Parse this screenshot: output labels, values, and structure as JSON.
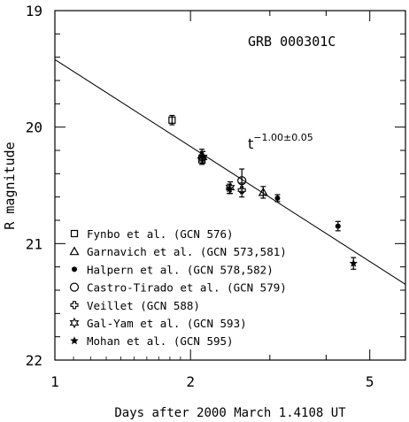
{
  "chart_data": {
    "type": "scatter",
    "title": "GRB 000301C",
    "xlabel": "Days after 2000 March 1.4108 UT",
    "ylabel": "R magnitude",
    "x_scale": "log",
    "xlim": [
      1,
      6
    ],
    "ylim": [
      22,
      19
    ],
    "x_ticks": [
      {
        "value": 1,
        "label": "1"
      },
      {
        "value": 2,
        "label": "2"
      },
      {
        "value": 5,
        "label": "5"
      }
    ],
    "y_ticks": [
      {
        "value": 19,
        "label": "19"
      },
      {
        "value": 20,
        "label": "20"
      },
      {
        "value": 21,
        "label": "21"
      },
      {
        "value": 22,
        "label": "22"
      }
    ],
    "fit_line": {
      "label_base": "t",
      "label_exponent": "−1.00±0.05",
      "points": [
        {
          "x": 1.0,
          "y": 19.42
        },
        {
          "x": 6.0,
          "y": 21.35
        }
      ]
    },
    "series": [
      {
        "name": "Fynbo et al. (GCN 576)",
        "marker": "square",
        "points": [
          {
            "x": 1.82,
            "y": 19.94,
            "err": 0.04
          },
          {
            "x": 2.12,
            "y": 20.28,
            "err": 0.04
          }
        ]
      },
      {
        "name": "Garnavich et al. (GCN 573,581)",
        "marker": "triangle",
        "points": [
          {
            "x": 2.12,
            "y": 20.24,
            "err": 0.05
          },
          {
            "x": 2.9,
            "y": 20.56,
            "err": 0.05
          }
        ]
      },
      {
        "name": "Halpern et al. (GCN 578,582)",
        "marker": "dot",
        "points": [
          {
            "x": 2.13,
            "y": 20.25,
            "err": 0.04
          },
          {
            "x": 3.12,
            "y": 20.61,
            "err": 0.03
          },
          {
            "x": 4.25,
            "y": 20.85,
            "err": 0.04
          }
        ]
      },
      {
        "name": "Castro-Tirado et al. (GCN 579)",
        "marker": "circle",
        "points": [
          {
            "x": 2.6,
            "y": 20.46,
            "err": 0.1
          }
        ]
      },
      {
        "name": "Veillet (GCN 588)",
        "marker": "plus",
        "points": [
          {
            "x": 2.6,
            "y": 20.54,
            "err": 0.06
          }
        ]
      },
      {
        "name": "Gal-Yam et al. (GCN 593)",
        "marker": "star6",
        "points": [
          {
            "x": 2.13,
            "y": 20.26,
            "err": 0.05
          },
          {
            "x": 2.45,
            "y": 20.52,
            "err": 0.05
          }
        ]
      },
      {
        "name": "Mohan et al. (GCN 595)",
        "marker": "star5",
        "points": [
          {
            "x": 2.44,
            "y": 20.53,
            "err": 0.04
          },
          {
            "x": 4.6,
            "y": 21.17,
            "err": 0.05
          }
        ]
      }
    ]
  }
}
